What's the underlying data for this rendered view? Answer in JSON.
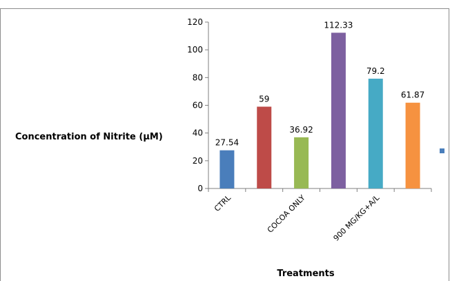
{
  "chart_data": {
    "type": "bar",
    "title": "",
    "ylabel": "Concentration of Nitrite (µM)",
    "xlabel": "Treatments",
    "ylim": [
      0,
      120
    ],
    "yticks": [
      0,
      20,
      40,
      60,
      80,
      100,
      120
    ],
    "categories": [
      "CTRL",
      "",
      "COCOA ONLY",
      "",
      "900 MG/KG+A/L",
      ""
    ],
    "values": [
      27.54,
      59,
      36.92,
      112.33,
      79.2,
      61.87
    ],
    "data_labels": [
      "27.54",
      "59",
      "36.92",
      "112.33",
      "79.2",
      "61.87"
    ],
    "colors": [
      "#4a7ebb",
      "#be4b48",
      "#98b954",
      "#7d60a0",
      "#46aac5",
      "#f69240"
    ],
    "grid": false,
    "legend": {
      "placement": "right",
      "marker_color": "#4a7ebb",
      "entries": [
        ""
      ]
    }
  }
}
